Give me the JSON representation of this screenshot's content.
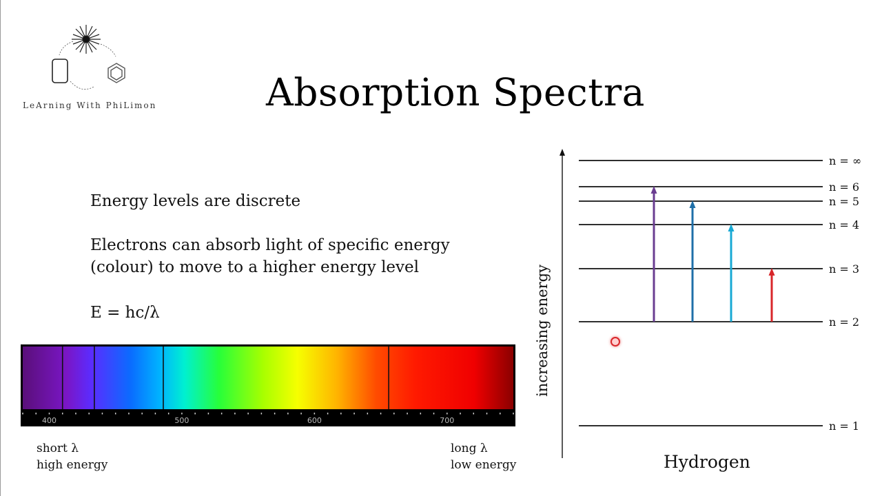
{
  "slide": {
    "title": "Absorption Spectra",
    "logo_text": "LeArning With PhiLimon",
    "bullets": [
      "Energy levels are discrete",
      "Electrons can absorb light of specific energy",
      "(colour) to move to a higher energy level",
      "E = hc/λ"
    ]
  },
  "spectrum": {
    "tick_labels": [
      "400",
      "500",
      "600",
      "700"
    ],
    "nm_min": 380,
    "nm_max": 750,
    "lines_nm": [
      410,
      434,
      486,
      656
    ],
    "left_caption": {
      "line1": "short λ",
      "line2": "high energy"
    },
    "right_caption": {
      "line1": "long λ",
      "line2": "low energy"
    }
  },
  "energy_diagram": {
    "axis_label": "increasing energy",
    "element": "Hydrogen",
    "levels": [
      {
        "n": 1,
        "label": "n = 1"
      },
      {
        "n": 2,
        "label": "n = 2"
      },
      {
        "n": 3,
        "label": "n = 3"
      },
      {
        "n": 4,
        "label": "n = 4"
      },
      {
        "n": 5,
        "label": "n = 5"
      },
      {
        "n": 6,
        "label": "n = 6"
      },
      {
        "n": "inf",
        "label": "n = ∞"
      }
    ],
    "transitions": [
      {
        "from": 2,
        "to": 6,
        "color": "#6a3d91"
      },
      {
        "from": 2,
        "to": 5,
        "color": "#1f6fa8"
      },
      {
        "from": 2,
        "to": 4,
        "color": "#18a9d4"
      },
      {
        "from": 2,
        "to": 3,
        "color": "#d8262a"
      }
    ]
  },
  "colors": {
    "text": "#111111",
    "background": "#ffffff",
    "cursor": "#d9262a"
  }
}
